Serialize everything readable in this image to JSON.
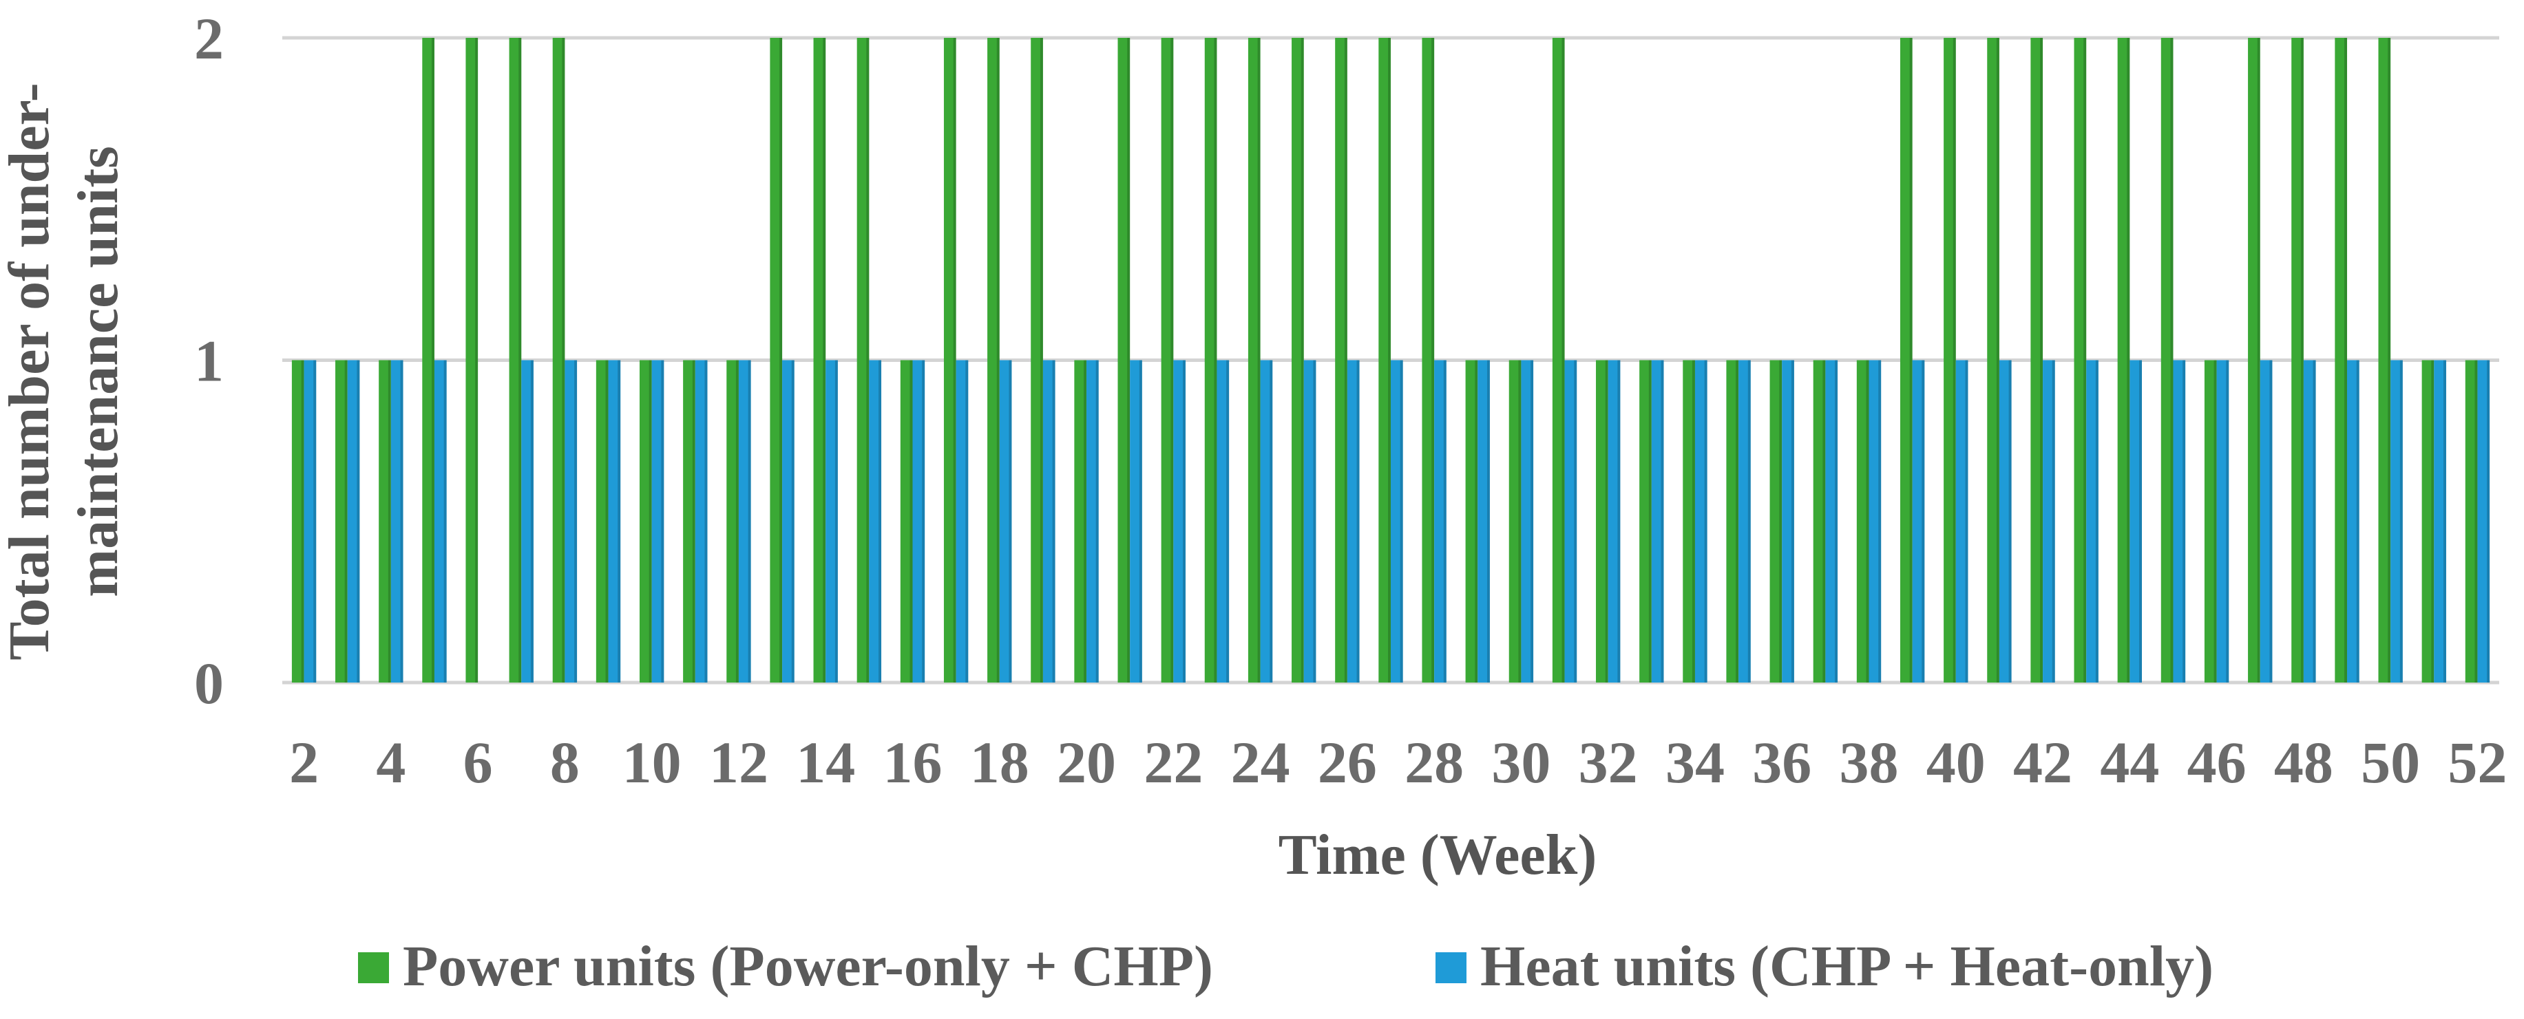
{
  "chart_data": {
    "type": "bar",
    "title": "",
    "xlabel": "Time (Week)",
    "ylabel_lines": [
      "Total number of under-",
      "maintenance units"
    ],
    "ylim": [
      0,
      2
    ],
    "yticks": [
      "0",
      "1",
      "2"
    ],
    "grid": true,
    "legend_placement": "bottom",
    "categories": [
      2,
      3,
      4,
      5,
      6,
      7,
      8,
      9,
      10,
      11,
      12,
      13,
      14,
      15,
      16,
      17,
      18,
      19,
      20,
      21,
      22,
      23,
      24,
      25,
      26,
      27,
      28,
      29,
      30,
      31,
      32,
      33,
      34,
      35,
      36,
      37,
      38,
      39,
      40,
      41,
      42,
      43,
      44,
      45,
      46,
      47,
      48,
      49,
      50,
      51,
      52
    ],
    "xtick_labels": [
      "2",
      "4",
      "6",
      "8",
      "10",
      "12",
      "14",
      "16",
      "18",
      "20",
      "22",
      "24",
      "26",
      "28",
      "30",
      "32",
      "34",
      "36",
      "38",
      "40",
      "42",
      "44",
      "46",
      "48",
      "50",
      "52"
    ],
    "series": [
      {
        "name": "Power units (Power-only + CHP)",
        "color": "#3aa935",
        "values": [
          1,
          1,
          1,
          2,
          2,
          2,
          2,
          1,
          1,
          1,
          1,
          2,
          2,
          2,
          1,
          2,
          2,
          2,
          1,
          2,
          2,
          2,
          2,
          2,
          2,
          2,
          2,
          1,
          1,
          2,
          1,
          1,
          1,
          1,
          1,
          1,
          1,
          2,
          2,
          2,
          2,
          2,
          2,
          2,
          1,
          2,
          2,
          2,
          2,
          1,
          1
        ]
      },
      {
        "name": "Heat units (CHP + Heat-only)",
        "color": "#1f9bd7",
        "values": [
          1,
          1,
          1,
          1,
          0,
          1,
          1,
          1,
          1,
          1,
          1,
          1,
          1,
          1,
          1,
          1,
          1,
          1,
          1,
          1,
          1,
          1,
          1,
          1,
          1,
          1,
          1,
          1,
          1,
          1,
          1,
          1,
          1,
          1,
          1,
          1,
          1,
          1,
          1,
          1,
          1,
          1,
          1,
          1,
          1,
          1,
          1,
          1,
          1,
          1,
          1
        ]
      }
    ]
  }
}
